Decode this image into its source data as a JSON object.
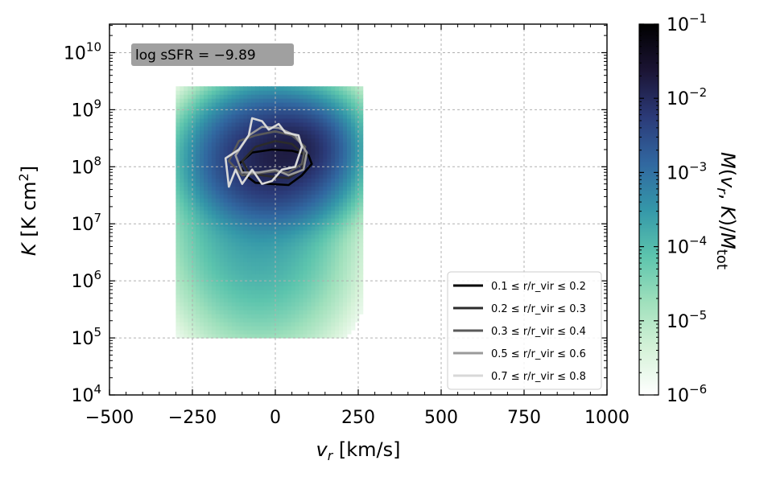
{
  "chart_data": {
    "type": "heatmap",
    "xlabel": "v_r [km/s]",
    "ylabel": "K [K cm^2]",
    "xlim": [
      -500,
      1000
    ],
    "ylim_log10": [
      4,
      10.5
    ],
    "y_log_scale": true,
    "grid": true,
    "x_ticks": [
      -500,
      -250,
      0,
      250,
      500,
      750,
      1000
    ],
    "x_tick_labels": [
      "−500",
      "−250",
      "0",
      "250",
      "500",
      "750",
      "1000"
    ],
    "y_ticks_log10": [
      4,
      5,
      6,
      7,
      8,
      9,
      10
    ],
    "y_tick_labels": [
      {
        "base": "10",
        "exp": "4"
      },
      {
        "base": "10",
        "exp": "5"
      },
      {
        "base": "10",
        "exp": "6"
      },
      {
        "base": "10",
        "exp": "7"
      },
      {
        "base": "10",
        "exp": "8"
      },
      {
        "base": "10",
        "exp": "9"
      },
      {
        "base": "10",
        "exp": "10"
      }
    ],
    "annotation": "log sSFR = −9.89",
    "annotation_bg": "#a0a0a0",
    "colorbar": {
      "label": "M(v_r, K)/M_tot",
      "log_scale": true,
      "range_log10": [
        -6,
        -1
      ],
      "tick_labels": [
        {
          "base": "10",
          "exp": "−1"
        },
        {
          "base": "10",
          "exp": "−2"
        },
        {
          "base": "10",
          "exp": "−3"
        },
        {
          "base": "10",
          "exp": "−4"
        },
        {
          "base": "10",
          "exp": "−5"
        },
        {
          "base": "10",
          "exp": "−6"
        }
      ],
      "colors": [
        "#ffffff",
        "#d5f2d8",
        "#9fe0bc",
        "#5cc4ad",
        "#3497a9",
        "#3167a0",
        "#2b3a78",
        "#1b1434",
        "#000000"
      ]
    },
    "heatmap_blobs": [
      {
        "vr": -20,
        "logK": 8.1,
        "s_vr": 90,
        "s_logK": 0.45,
        "weight": -1.9
      },
      {
        "vr": 60,
        "logK": 8.3,
        "s_vr": 60,
        "s_logK": 0.3,
        "weight": -2.1
      },
      {
        "vr": -60,
        "logK": 7.2,
        "s_vr": 110,
        "s_logK": 0.9,
        "weight": -3.6
      },
      {
        "vr": -30,
        "logK": 6.2,
        "s_vr": 130,
        "s_logK": 0.8,
        "weight": -4.6
      },
      {
        "vr": 120,
        "logK": 8.5,
        "s_vr": 70,
        "s_logK": 0.4,
        "weight": -3.5
      }
    ],
    "series": [
      {
        "name": "0.1 ≤ r/r_vir ≤ 0.2",
        "color": "#000000",
        "vr": [
          -110,
          -70,
          -10,
          50,
          100,
          110,
          80,
          40,
          -20,
          -60,
          -90,
          -110
        ],
        "logK": [
          8.05,
          8.25,
          8.3,
          8.28,
          8.2,
          8.05,
          7.85,
          7.68,
          7.7,
          7.72,
          7.85,
          8.05
        ]
      },
      {
        "name": "0.2 ≤ r/r_vir ≤ 0.3",
        "color": "#2b2b2b",
        "vr": [
          -100,
          -60,
          0,
          50,
          90,
          80,
          40,
          0,
          -40,
          -80,
          -100
        ],
        "logK": [
          8.1,
          8.35,
          8.45,
          8.4,
          8.2,
          7.95,
          7.8,
          7.82,
          7.85,
          7.9,
          8.1
        ]
      },
      {
        "name": "0.3 ≤ r/r_vir ≤ 0.4",
        "color": "#5a5a5a",
        "vr": [
          -140,
          -110,
          -60,
          0,
          50,
          90,
          80,
          40,
          0,
          -60,
          -100,
          -140
        ],
        "logK": [
          8.1,
          8.45,
          8.55,
          8.62,
          8.55,
          8.35,
          8.05,
          7.9,
          7.92,
          7.88,
          7.85,
          8.1
        ]
      },
      {
        "name": "0.5 ≤ r/r_vir ≤ 0.6",
        "color": "#9a9a9a",
        "vr": [
          -120,
          -80,
          -40,
          10,
          60,
          95,
          85,
          40,
          0,
          -50,
          -100,
          -120
        ],
        "logK": [
          8.2,
          8.55,
          8.7,
          8.68,
          8.55,
          8.25,
          7.95,
          7.85,
          7.95,
          7.9,
          7.9,
          8.2
        ]
      },
      {
        "name": "0.7 ≤ r/r_vir ≤ 0.8",
        "color": "#d8d8d8",
        "vr": [
          -150,
          -110,
          -80,
          -70,
          -40,
          -20,
          10,
          30,
          70,
          80,
          60,
          20,
          -10,
          -40,
          -70,
          -100,
          -120,
          -140,
          -150
        ],
        "logK": [
          8.15,
          8.3,
          8.55,
          8.85,
          8.8,
          8.65,
          8.75,
          8.6,
          8.55,
          8.35,
          8.0,
          7.95,
          7.75,
          7.7,
          7.95,
          7.7,
          7.95,
          7.65,
          8.15
        ]
      }
    ]
  }
}
